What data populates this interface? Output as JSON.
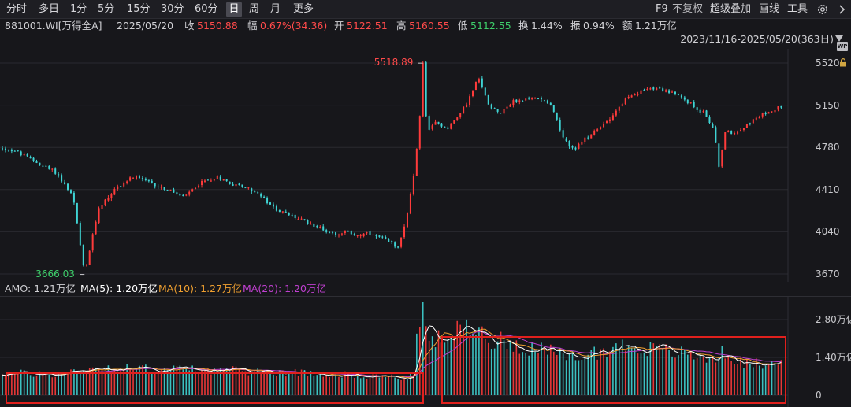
{
  "toolbar": {
    "periods": [
      "分时",
      "多日",
      "1分",
      "5分",
      "15分",
      "30分",
      "60分",
      "日",
      "周",
      "月",
      "更多"
    ],
    "active_period": "日",
    "f9": "F9",
    "no_adjust": "不复权",
    "overlay": "超级叠加",
    "draw": "画线",
    "tools": "工具"
  },
  "info": {
    "code": "881001.WI[万得全A]",
    "date": "2025/05/20",
    "close_label": "收",
    "close": "5150.88",
    "change_label": "幅",
    "change": "0.67%(34.36)",
    "open_label": "开",
    "open": "5122.51",
    "high_label": "高",
    "high": "5160.55",
    "low_label": "低",
    "low": "5112.55",
    "turnover_label": "换",
    "turnover": "1.44%",
    "amplitude_label": "振",
    "amplitude": "0.94%",
    "amount_label": "额",
    "amount": "1.21万亿"
  },
  "range": "2023/11/16-2025/05/20(363日)",
  "icons": {
    "wp": "WP",
    "lock": "lock-icon",
    "settings": "gear-icon",
    "next": "chevron-right-icon"
  },
  "price_axis": [
    "5520",
    "5150",
    "4780",
    "4410",
    "4040",
    "3670"
  ],
  "annotations": {
    "max": "5518.89",
    "min": "3666.03"
  },
  "amo": {
    "label": "AMO: 1.21万亿",
    "ma5": "MA(5): 1.20万亿",
    "ma10": "MA(10): 1.27万亿",
    "ma20": "MA(20): 1.20万亿"
  },
  "volume_axis": [
    "2.80万亿",
    "1.40万亿",
    "0"
  ],
  "colors": {
    "up": "#ff3b3b",
    "down": "#3fd4d4",
    "ma5": "#ffffff",
    "ma10": "#f0a030",
    "ma20": "#c040d0",
    "highlight": "#e0201d",
    "max_label": "#ff4a4a",
    "min_label": "#3ecf6b"
  },
  "chart_data": {
    "type": "candlestick",
    "title": "881001.WI[万得全A]",
    "x_range": [
      "2023/11/16",
      "2025/05/20"
    ],
    "sessions": 363,
    "ylim": [
      3580,
      5600
    ],
    "price_anchors": [
      [
        0,
        4770
      ],
      [
        10,
        4745
      ],
      [
        25,
        4640
      ],
      [
        38,
        4560
      ],
      [
        50,
        4340
      ],
      [
        58,
        3666
      ],
      [
        68,
        4250
      ],
      [
        80,
        4420
      ],
      [
        92,
        4520
      ],
      [
        100,
        4490
      ],
      [
        110,
        4440
      ],
      [
        120,
        4390
      ],
      [
        128,
        4340
      ],
      [
        140,
        4470
      ],
      [
        152,
        4520
      ],
      [
        162,
        4460
      ],
      [
        172,
        4430
      ],
      [
        180,
        4380
      ],
      [
        190,
        4260
      ],
      [
        200,
        4200
      ],
      [
        210,
        4150
      ],
      [
        220,
        4100
      ],
      [
        228,
        4050
      ],
      [
        235,
        4020
      ],
      [
        242,
        4040
      ],
      [
        250,
        4010
      ],
      [
        258,
        4020
      ],
      [
        266,
        3990
      ],
      [
        274,
        3940
      ],
      [
        280,
        3910
      ],
      [
        286,
        4210
      ],
      [
        290,
        4480
      ],
      [
        294,
        4900
      ],
      [
        297,
        5518.89
      ],
      [
        300,
        4900
      ],
      [
        306,
        5000
      ],
      [
        314,
        4950
      ],
      [
        322,
        5050
      ],
      [
        330,
        5220
      ],
      [
        336,
        5390
      ],
      [
        344,
        5140
      ],
      [
        352,
        5090
      ],
      [
        360,
        5180
      ],
      [
        372,
        5200
      ],
      [
        380,
        5220
      ],
      [
        388,
        5150
      ],
      [
        396,
        4850
      ],
      [
        404,
        4760
      ],
      [
        414,
        4880
      ],
      [
        422,
        4950
      ],
      [
        432,
        5080
      ],
      [
        440,
        5200
      ],
      [
        450,
        5260
      ],
      [
        458,
        5310
      ],
      [
        466,
        5290
      ],
      [
        476,
        5240
      ],
      [
        484,
        5180
      ],
      [
        490,
        5120
      ],
      [
        496,
        5080
      ],
      [
        502,
        4950
      ],
      [
        506,
        4620
      ],
      [
        510,
        4900
      ],
      [
        518,
        4920
      ],
      [
        528,
        5000
      ],
      [
        536,
        5060
      ],
      [
        544,
        5110
      ],
      [
        552,
        5150.88
      ]
    ],
    "volume_unit": "万亿",
    "volume_ylim": [
      0,
      3.5
    ],
    "volume_anchors": [
      [
        0,
        0.82
      ],
      [
        40,
        0.78
      ],
      [
        60,
        1.0
      ],
      [
        100,
        0.98
      ],
      [
        140,
        0.95
      ],
      [
        180,
        0.88
      ],
      [
        220,
        0.82
      ],
      [
        270,
        0.7
      ],
      [
        285,
        0.62
      ],
      [
        290,
        0.7
      ],
      [
        293,
        2.2
      ],
      [
        296,
        3.4
      ],
      [
        300,
        2.0
      ],
      [
        312,
        2.1
      ],
      [
        330,
        2.6
      ],
      [
        345,
        2.1
      ],
      [
        360,
        1.9
      ],
      [
        380,
        1.7
      ],
      [
        400,
        1.4
      ],
      [
        420,
        1.6
      ],
      [
        440,
        1.85
      ],
      [
        460,
        1.7
      ],
      [
        480,
        1.55
      ],
      [
        500,
        1.35
      ],
      [
        510,
        1.6
      ],
      [
        520,
        1.2
      ],
      [
        540,
        1.15
      ],
      [
        552,
        1.21
      ]
    ],
    "latest": {
      "amo": 1.21,
      "ma5": 1.2,
      "ma10": 1.27,
      "ma20": 1.2
    },
    "max_label": 5518.89,
    "min_label": 3666.03
  }
}
